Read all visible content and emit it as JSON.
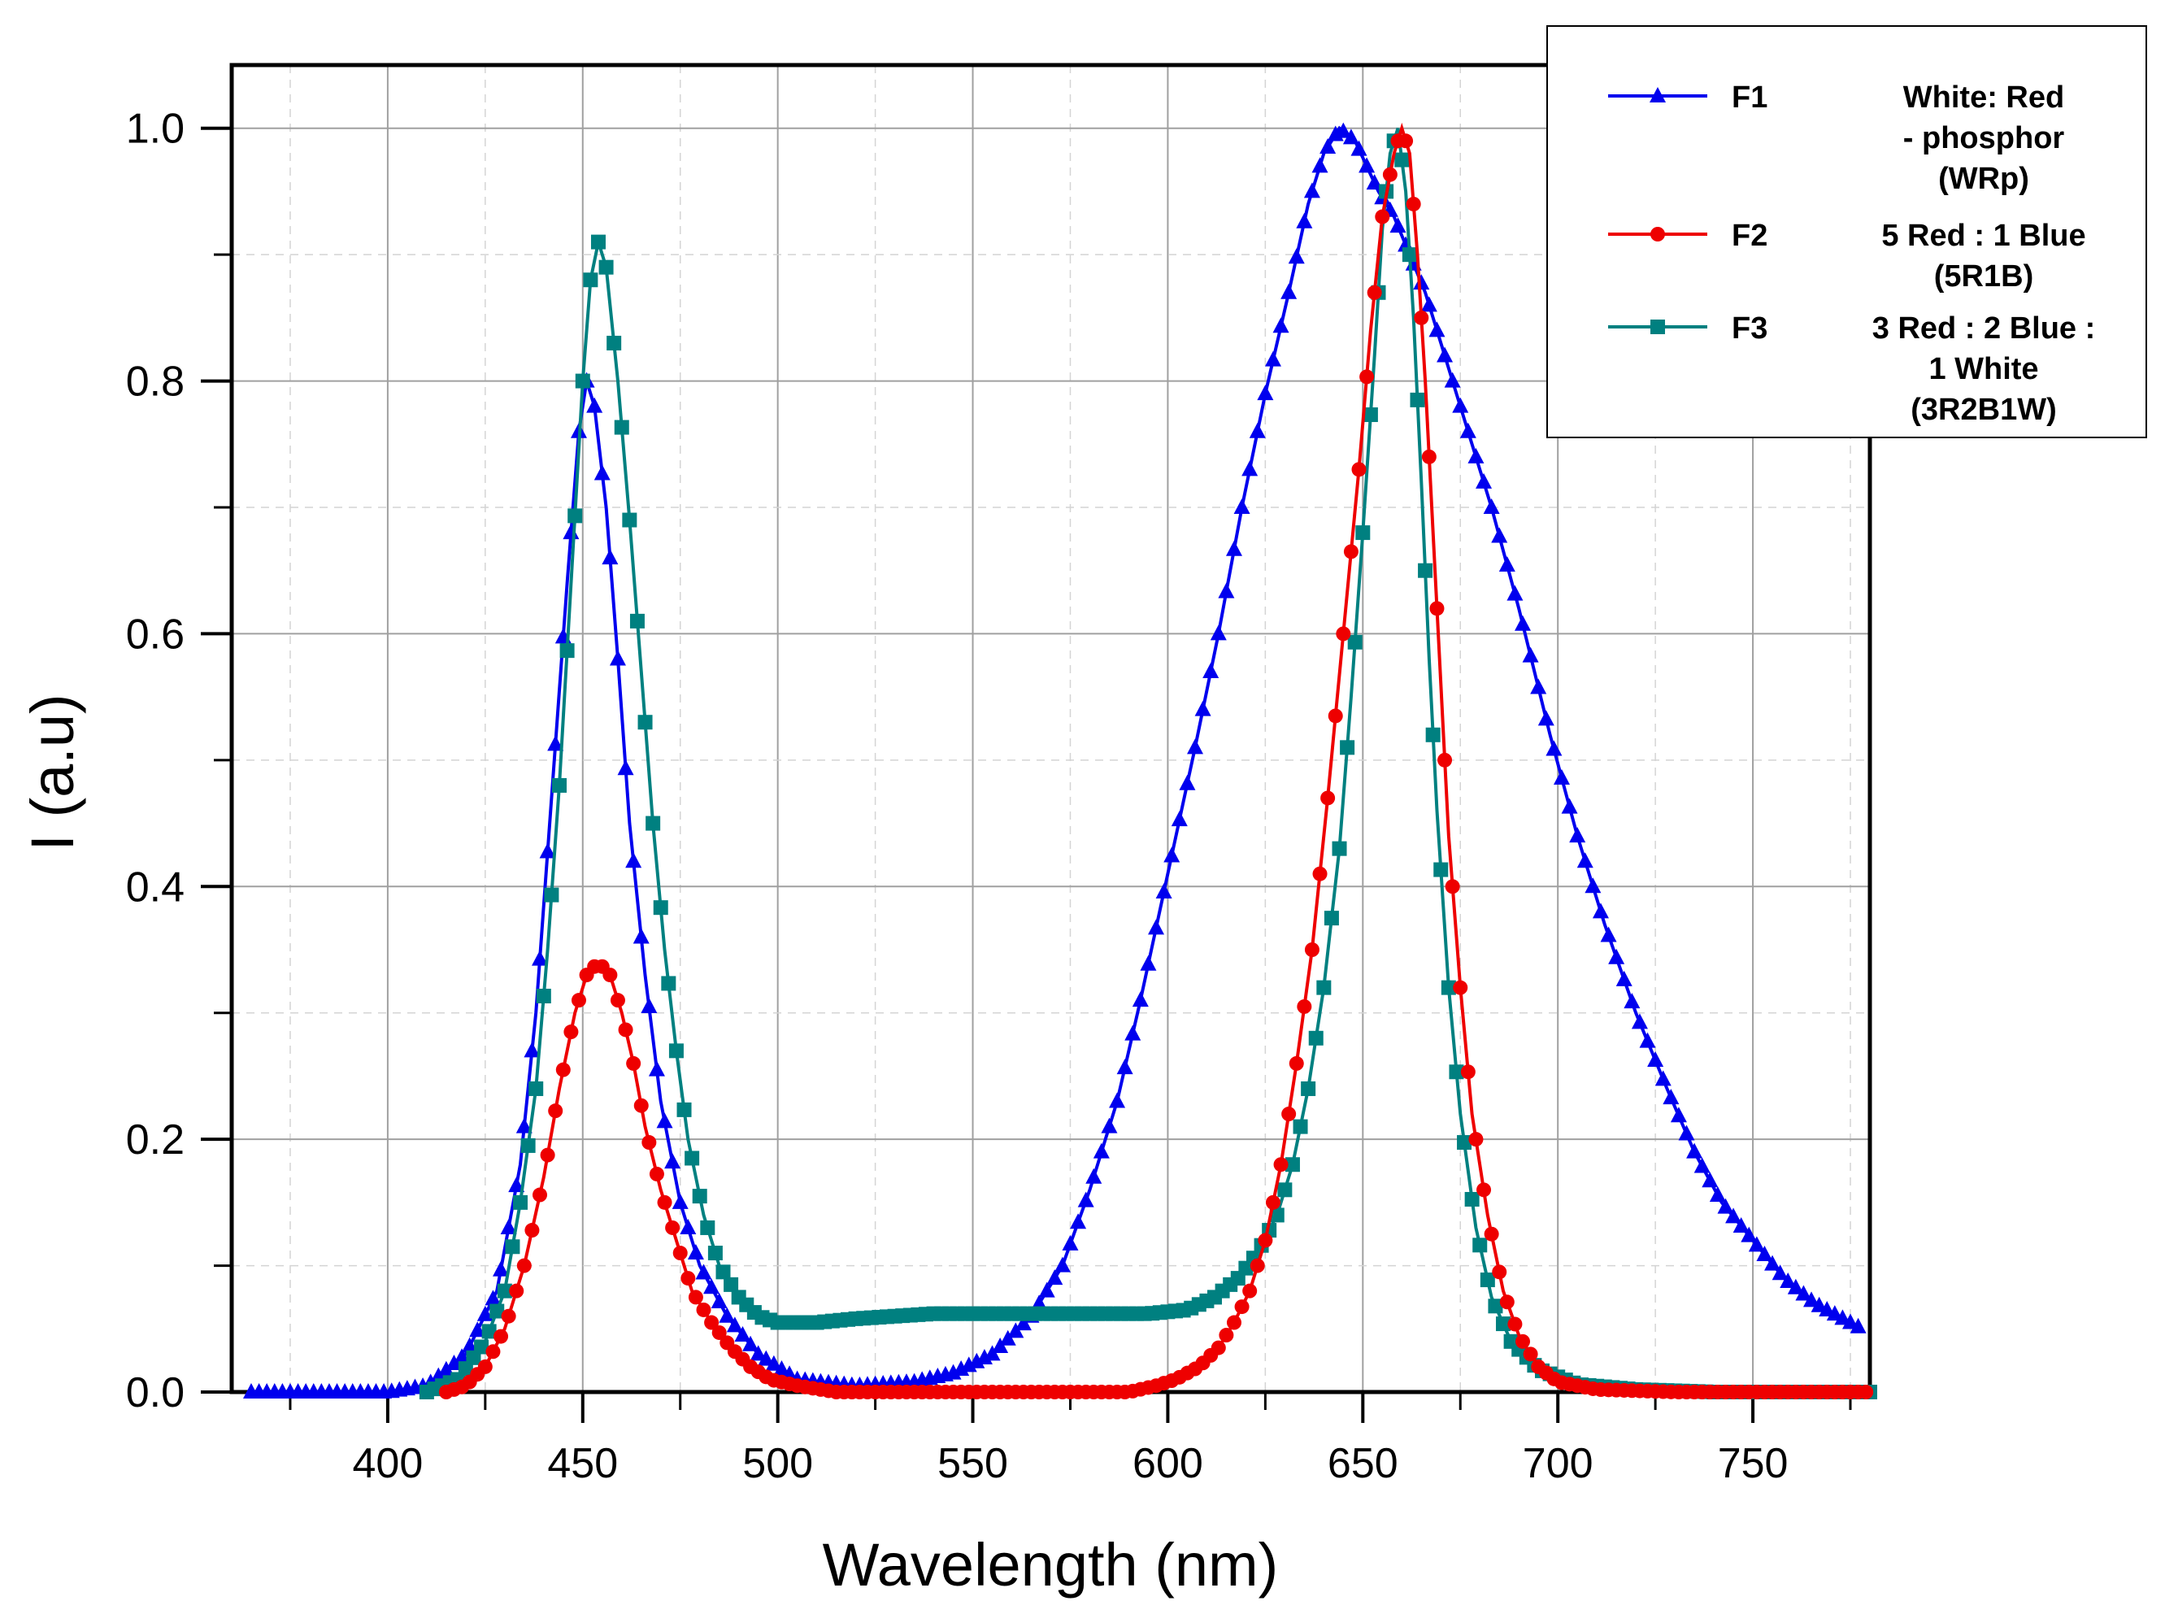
{
  "chart_data": {
    "type": "line",
    "xlabel": "Wavelength (nm)",
    "ylabel": "I (a.u)",
    "xlim": [
      360,
      780
    ],
    "ylim": [
      0,
      1.05
    ],
    "x_ticks": [
      "400",
      "450",
      "500",
      "550",
      "600",
      "650",
      "700",
      "750"
    ],
    "y_ticks": [
      "0.0",
      "0.2",
      "0.4",
      "0.6",
      "0.8",
      "1.0"
    ],
    "grid": true,
    "legend_position": "top-right",
    "series": [
      {
        "id": "F1",
        "name": "F1",
        "description_lines": [
          "White: Red",
          "- phosphor",
          "(WRp)"
        ],
        "color": "#0000ee",
        "marker": "triangle",
        "points": [
          [
            365,
            0.0
          ],
          [
            380,
            0.0
          ],
          [
            400,
            0.0
          ],
          [
            410,
            0.005
          ],
          [
            420,
            0.03
          ],
          [
            428,
            0.08
          ],
          [
            434,
            0.18
          ],
          [
            438,
            0.3
          ],
          [
            442,
            0.47
          ],
          [
            446,
            0.64
          ],
          [
            449,
            0.76
          ],
          [
            451,
            0.8
          ],
          [
            453,
            0.78
          ],
          [
            456,
            0.7
          ],
          [
            459,
            0.58
          ],
          [
            462,
            0.45
          ],
          [
            466,
            0.33
          ],
          [
            470,
            0.23
          ],
          [
            475,
            0.15
          ],
          [
            480,
            0.1
          ],
          [
            487,
            0.06
          ],
          [
            495,
            0.03
          ],
          [
            505,
            0.01
          ],
          [
            520,
            0.005
          ],
          [
            535,
            0.008
          ],
          [
            545,
            0.015
          ],
          [
            555,
            0.03
          ],
          [
            565,
            0.06
          ],
          [
            573,
            0.1
          ],
          [
            580,
            0.16
          ],
          [
            587,
            0.23
          ],
          [
            593,
            0.31
          ],
          [
            600,
            0.41
          ],
          [
            607,
            0.51
          ],
          [
            613,
            0.6
          ],
          [
            619,
            0.7
          ],
          [
            625,
            0.79
          ],
          [
            631,
            0.87
          ],
          [
            636,
            0.94
          ],
          [
            640,
            0.98
          ],
          [
            644,
            1.0
          ],
          [
            648,
            0.99
          ],
          [
            651,
            0.97
          ],
          [
            654,
            0.95
          ],
          [
            658,
            0.93
          ],
          [
            662,
            0.9
          ],
          [
            666,
            0.87
          ],
          [
            670,
            0.83
          ],
          [
            676,
            0.77
          ],
          [
            683,
            0.7
          ],
          [
            690,
            0.62
          ],
          [
            698,
            0.52
          ],
          [
            705,
            0.44
          ],
          [
            712,
            0.37
          ],
          [
            720,
            0.3
          ],
          [
            728,
            0.24
          ],
          [
            735,
            0.19
          ],
          [
            742,
            0.15
          ],
          [
            750,
            0.12
          ],
          [
            758,
            0.09
          ],
          [
            766,
            0.07
          ],
          [
            772,
            0.06
          ],
          [
            778,
            0.05
          ]
        ]
      },
      {
        "id": "F2",
        "name": "F2",
        "description_lines": [
          "5 Red : 1 Blue",
          "(5R1B)"
        ],
        "color": "#ee0000",
        "marker": "circle",
        "points": [
          [
            415,
            0.0
          ],
          [
            420,
            0.005
          ],
          [
            425,
            0.02
          ],
          [
            430,
            0.05
          ],
          [
            435,
            0.1
          ],
          [
            440,
            0.17
          ],
          [
            444,
            0.24
          ],
          [
            448,
            0.3
          ],
          [
            451,
            0.33
          ],
          [
            454,
            0.34
          ],
          [
            457,
            0.33
          ],
          [
            460,
            0.3
          ],
          [
            463,
            0.26
          ],
          [
            466,
            0.21
          ],
          [
            470,
            0.16
          ],
          [
            474,
            0.12
          ],
          [
            478,
            0.08
          ],
          [
            483,
            0.055
          ],
          [
            488,
            0.035
          ],
          [
            493,
            0.02
          ],
          [
            498,
            0.01
          ],
          [
            505,
            0.005
          ],
          [
            515,
            0.0
          ],
          [
            530,
            0.0
          ],
          [
            550,
            0.0
          ],
          [
            570,
            0.0
          ],
          [
            590,
            0.0
          ],
          [
            597,
            0.005
          ],
          [
            602,
            0.01
          ],
          [
            608,
            0.02
          ],
          [
            613,
            0.035
          ],
          [
            617,
            0.055
          ],
          [
            621,
            0.08
          ],
          [
            625,
            0.12
          ],
          [
            629,
            0.18
          ],
          [
            633,
            0.26
          ],
          [
            637,
            0.35
          ],
          [
            641,
            0.47
          ],
          [
            645,
            0.6
          ],
          [
            649,
            0.73
          ],
          [
            652,
            0.84
          ],
          [
            655,
            0.93
          ],
          [
            658,
            0.98
          ],
          [
            660,
            1.0
          ],
          [
            662,
            0.98
          ],
          [
            664,
            0.9
          ],
          [
            666,
            0.8
          ],
          [
            668,
            0.68
          ],
          [
            670,
            0.56
          ],
          [
            672,
            0.44
          ],
          [
            675,
            0.32
          ],
          [
            678,
            0.22
          ],
          [
            682,
            0.14
          ],
          [
            686,
            0.08
          ],
          [
            690,
            0.045
          ],
          [
            695,
            0.02
          ],
          [
            700,
            0.008
          ],
          [
            710,
            0.002
          ],
          [
            730,
            0.0
          ],
          [
            760,
            0.0
          ],
          [
            780,
            0.0
          ]
        ]
      },
      {
        "id": "F3",
        "name": "F3",
        "description_lines": [
          "3 Red : 2 Blue :",
          "1 White",
          "(3R2B1W)"
        ],
        "color": "#008080",
        "marker": "square",
        "points": [
          [
            410,
            0.0
          ],
          [
            418,
            0.01
          ],
          [
            425,
            0.04
          ],
          [
            430,
            0.08
          ],
          [
            434,
            0.15
          ],
          [
            438,
            0.24
          ],
          [
            441,
            0.35
          ],
          [
            444,
            0.48
          ],
          [
            447,
            0.64
          ],
          [
            450,
            0.8
          ],
          [
            452,
            0.88
          ],
          [
            454,
            0.91
          ],
          [
            456,
            0.89
          ],
          [
            459,
            0.8
          ],
          [
            462,
            0.69
          ],
          [
            465,
            0.57
          ],
          [
            468,
            0.45
          ],
          [
            471,
            0.35
          ],
          [
            474,
            0.27
          ],
          [
            477,
            0.2
          ],
          [
            481,
            0.14
          ],
          [
            485,
            0.1
          ],
          [
            490,
            0.075
          ],
          [
            495,
            0.06
          ],
          [
            500,
            0.055
          ],
          [
            510,
            0.055
          ],
          [
            520,
            0.058
          ],
          [
            530,
            0.06
          ],
          [
            540,
            0.062
          ],
          [
            560,
            0.062
          ],
          [
            580,
            0.062
          ],
          [
            595,
            0.062
          ],
          [
            605,
            0.065
          ],
          [
            612,
            0.075
          ],
          [
            618,
            0.09
          ],
          [
            623,
            0.11
          ],
          [
            628,
            0.14
          ],
          [
            632,
            0.18
          ],
          [
            636,
            0.24
          ],
          [
            640,
            0.32
          ],
          [
            644,
            0.43
          ],
          [
            647,
            0.55
          ],
          [
            650,
            0.68
          ],
          [
            653,
            0.82
          ],
          [
            655,
            0.92
          ],
          [
            657,
            0.98
          ],
          [
            659,
            1.0
          ],
          [
            661,
            0.95
          ],
          [
            663,
            0.85
          ],
          [
            665,
            0.72
          ],
          [
            667,
            0.58
          ],
          [
            669,
            0.46
          ],
          [
            672,
            0.32
          ],
          [
            675,
            0.22
          ],
          [
            679,
            0.13
          ],
          [
            683,
            0.075
          ],
          [
            688,
            0.04
          ],
          [
            695,
            0.018
          ],
          [
            705,
            0.006
          ],
          [
            720,
            0.002
          ],
          [
            740,
            0.0
          ],
          [
            780,
            0.0
          ]
        ]
      }
    ]
  }
}
